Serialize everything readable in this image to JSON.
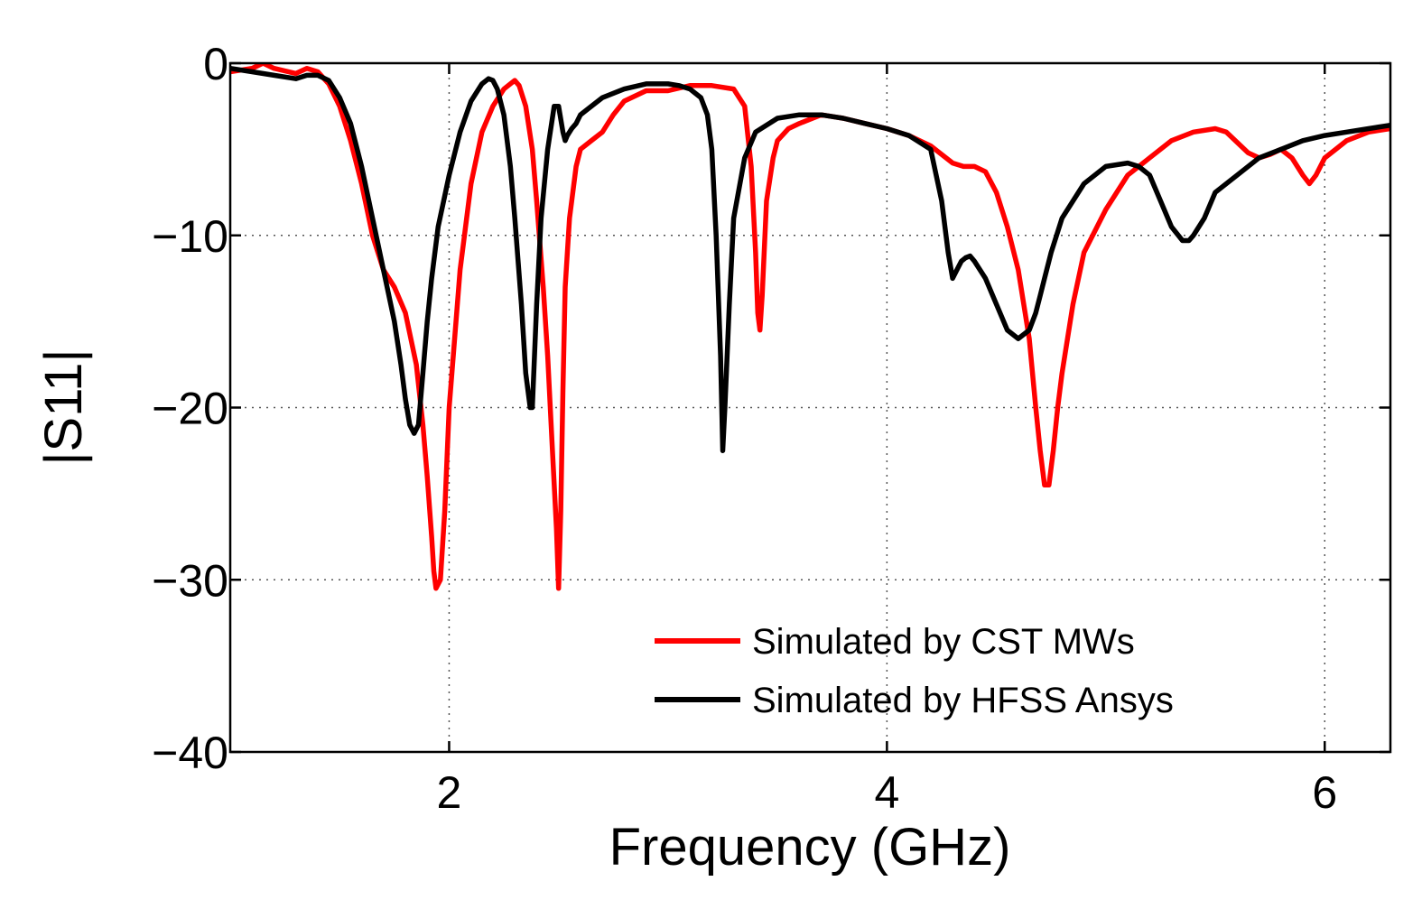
{
  "chart_data": {
    "type": "line",
    "title": "",
    "xlabel": "Frequency (GHz)",
    "ylabel": "|S11|",
    "xlim": [
      1.0,
      6.3
    ],
    "ylim": [
      -40,
      0
    ],
    "xticks": [
      2,
      4,
      6
    ],
    "yticks": [
      0,
      -10,
      -20,
      -30,
      -40
    ],
    "xtick_labels": [
      "2",
      "4",
      "6"
    ],
    "ytick_labels": [
      "0",
      "−10",
      "−20",
      "−30",
      "−40"
    ],
    "grid": true,
    "legend_position": "bottom-right",
    "series": [
      {
        "name": "Simulated by CST MWs",
        "color": "#ff0000",
        "x": [
          1.0,
          1.1,
          1.15,
          1.2,
          1.3,
          1.35,
          1.4,
          1.45,
          1.5,
          1.55,
          1.6,
          1.65,
          1.7,
          1.75,
          1.8,
          1.85,
          1.88,
          1.9,
          1.92,
          1.93,
          1.94,
          1.96,
          1.98,
          2.0,
          2.05,
          2.1,
          2.15,
          2.2,
          2.25,
          2.28,
          2.3,
          2.32,
          2.35,
          2.38,
          2.4,
          2.43,
          2.45,
          2.47,
          2.49,
          2.5,
          2.51,
          2.52,
          2.53,
          2.55,
          2.58,
          2.6,
          2.65,
          2.7,
          2.75,
          2.8,
          2.9,
          3.0,
          3.1,
          3.2,
          3.3,
          3.35,
          3.38,
          3.4,
          3.41,
          3.42,
          3.43,
          3.45,
          3.48,
          3.5,
          3.55,
          3.6,
          3.7,
          3.8,
          3.9,
          4.0,
          4.1,
          4.2,
          4.3,
          4.35,
          4.4,
          4.45,
          4.5,
          4.55,
          4.6,
          4.65,
          4.68,
          4.7,
          4.72,
          4.74,
          4.76,
          4.78,
          4.8,
          4.85,
          4.9,
          5.0,
          5.1,
          5.2,
          5.3,
          5.4,
          5.5,
          5.55,
          5.6,
          5.65,
          5.7,
          5.75,
          5.8,
          5.85,
          5.9,
          5.93,
          5.96,
          6.0,
          6.05,
          6.1,
          6.2,
          6.3
        ],
        "y": [
          -0.5,
          -0.3,
          0.0,
          -0.3,
          -0.6,
          -0.3,
          -0.5,
          -1.2,
          -2.5,
          -4.5,
          -7.0,
          -10.0,
          -12.0,
          -13.0,
          -14.5,
          -17.5,
          -21.0,
          -24.0,
          -27.5,
          -29.5,
          -30.5,
          -30.0,
          -26.0,
          -20.0,
          -12.0,
          -7.0,
          -4.0,
          -2.5,
          -1.5,
          -1.2,
          -1.0,
          -1.3,
          -2.5,
          -5.0,
          -8.0,
          -13.0,
          -17.0,
          -22.0,
          -27.0,
          -30.5,
          -26.0,
          -19.0,
          -13.0,
          -9.0,
          -6.0,
          -5.0,
          -4.5,
          -4.0,
          -3.0,
          -2.2,
          -1.6,
          -1.6,
          -1.3,
          -1.3,
          -1.5,
          -2.5,
          -6.0,
          -11.0,
          -14.5,
          -15.5,
          -13.5,
          -8.0,
          -5.5,
          -4.5,
          -3.8,
          -3.5,
          -3.0,
          -3.2,
          -3.5,
          -3.8,
          -4.2,
          -4.8,
          -5.8,
          -6.0,
          -6.0,
          -6.3,
          -7.5,
          -9.5,
          -12.0,
          -16.0,
          -20.0,
          -22.5,
          -24.5,
          -24.5,
          -22.5,
          -20.0,
          -18.0,
          -14.0,
          -11.0,
          -8.5,
          -6.5,
          -5.5,
          -4.5,
          -4.0,
          -3.8,
          -4.0,
          -4.6,
          -5.2,
          -5.5,
          -5.3,
          -5.0,
          -5.5,
          -6.5,
          -7.0,
          -6.5,
          -5.5,
          -5.0,
          -4.5,
          -4.0,
          -3.8
        ]
      },
      {
        "name": "Simulated by HFSS Ansys",
        "color": "#000000",
        "x": [
          1.0,
          1.1,
          1.2,
          1.3,
          1.35,
          1.4,
          1.45,
          1.5,
          1.55,
          1.6,
          1.65,
          1.7,
          1.75,
          1.78,
          1.8,
          1.82,
          1.84,
          1.86,
          1.88,
          1.9,
          1.92,
          1.95,
          2.0,
          2.05,
          2.1,
          2.15,
          2.18,
          2.2,
          2.22,
          2.25,
          2.28,
          2.3,
          2.33,
          2.35,
          2.37,
          2.38,
          2.39,
          2.4,
          2.42,
          2.45,
          2.48,
          2.5,
          2.52,
          2.53,
          2.54,
          2.55,
          2.56,
          2.58,
          2.6,
          2.65,
          2.7,
          2.8,
          2.9,
          3.0,
          3.05,
          3.1,
          3.15,
          3.18,
          3.2,
          3.22,
          3.24,
          3.25,
          3.26,
          3.28,
          3.3,
          3.35,
          3.4,
          3.5,
          3.6,
          3.7,
          3.8,
          3.9,
          4.0,
          4.1,
          4.2,
          4.25,
          4.28,
          4.3,
          4.32,
          4.34,
          4.36,
          4.38,
          4.4,
          4.45,
          4.5,
          4.55,
          4.6,
          4.65,
          4.68,
          4.7,
          4.72,
          4.75,
          4.8,
          4.9,
          5.0,
          5.1,
          5.15,
          5.2,
          5.25,
          5.3,
          5.35,
          5.38,
          5.4,
          5.45,
          5.5,
          5.6,
          5.7,
          5.8,
          5.9,
          6.0,
          6.1,
          6.2,
          6.3
        ],
        "y": [
          -0.3,
          -0.5,
          -0.7,
          -0.9,
          -0.7,
          -0.7,
          -1.0,
          -2.0,
          -3.5,
          -6.0,
          -9.0,
          -12.0,
          -15.0,
          -17.5,
          -19.5,
          -21.0,
          -21.5,
          -21.0,
          -18.0,
          -15.0,
          -12.5,
          -9.5,
          -6.5,
          -4.0,
          -2.2,
          -1.2,
          -0.9,
          -1.0,
          -1.5,
          -3.0,
          -6.0,
          -9.0,
          -14.0,
          -18.0,
          -20.0,
          -20.0,
          -17.0,
          -14.0,
          -9.0,
          -5.0,
          -2.5,
          -2.5,
          -4.0,
          -4.5,
          -4.2,
          -4.0,
          -3.8,
          -3.5,
          -3.0,
          -2.5,
          -2.0,
          -1.5,
          -1.2,
          -1.2,
          -1.3,
          -1.5,
          -2.0,
          -3.0,
          -5.0,
          -10.0,
          -17.0,
          -22.5,
          -20.0,
          -14.0,
          -9.0,
          -5.5,
          -4.0,
          -3.2,
          -3.0,
          -3.0,
          -3.2,
          -3.5,
          -3.8,
          -4.2,
          -5.0,
          -8.0,
          -11.0,
          -12.5,
          -12.0,
          -11.5,
          -11.3,
          -11.2,
          -11.5,
          -12.5,
          -14.0,
          -15.5,
          -16.0,
          -15.5,
          -14.5,
          -13.5,
          -12.5,
          -11.0,
          -9.0,
          -7.0,
          -6.0,
          -5.8,
          -6.0,
          -6.5,
          -8.0,
          -9.5,
          -10.3,
          -10.3,
          -10.0,
          -9.0,
          -7.5,
          -6.5,
          -5.5,
          -5.0,
          -4.5,
          -4.2,
          -4.0,
          -3.8,
          -3.6
        ]
      }
    ]
  }
}
